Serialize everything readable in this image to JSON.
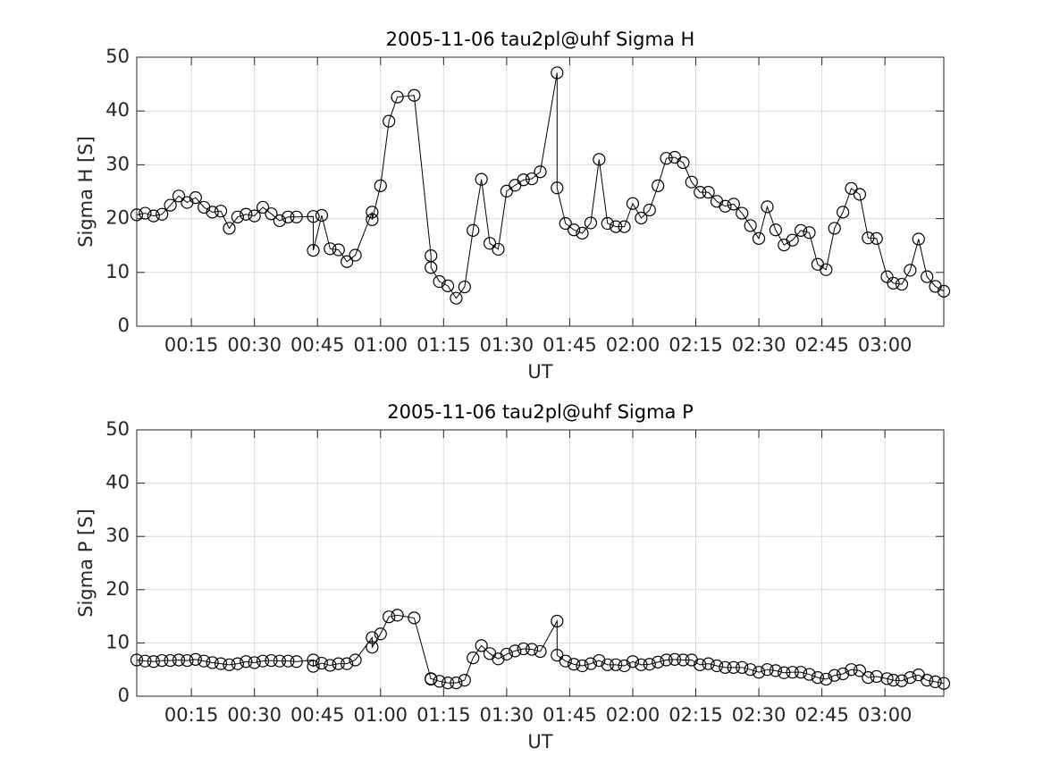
{
  "chart_data": [
    {
      "type": "line",
      "title": "2005-11-06  tau2pl@uhf Sigma H",
      "xlabel": "UT",
      "ylabel": "Sigma H [S]",
      "x": [
        2,
        4,
        6,
        8,
        10,
        12,
        14,
        16,
        18,
        20,
        22,
        24,
        26,
        28,
        30,
        32,
        34,
        36,
        38,
        40,
        44,
        44,
        46,
        48,
        50,
        52,
        54,
        58,
        58,
        60,
        62,
        64,
        68,
        72,
        72,
        74,
        76,
        78,
        80,
        82,
        84,
        86,
        88,
        90,
        92,
        94,
        96,
        98,
        102,
        102,
        104,
        106,
        108,
        110,
        112,
        114,
        116,
        118,
        120,
        122,
        124,
        126,
        128,
        130,
        132,
        134,
        136,
        138,
        140,
        142,
        144,
        146,
        148,
        150,
        152,
        154,
        156,
        158,
        160,
        162,
        164,
        166,
        168,
        170,
        172,
        174,
        176,
        178,
        180.5,
        182,
        184,
        186,
        188,
        190,
        192,
        194
      ],
      "values": [
        20.7,
        21,
        20.5,
        20.8,
        22.5,
        24.2,
        23,
        23.9,
        22.1,
        21.2,
        21.4,
        18.2,
        20.3,
        20.8,
        20.5,
        22.1,
        20.9,
        19.6,
        20.3,
        20.3,
        20.4,
        14.1,
        20.6,
        14.4,
        14.2,
        12,
        13.2,
        21.2,
        19.8,
        26.1,
        38.1,
        42.6,
        42.9,
        13.1,
        10.9,
        8.3,
        7.5,
        5.2,
        7.3,
        17.8,
        27.3,
        15.4,
        14.3,
        25.1,
        26.2,
        27.2,
        27.4,
        28.7,
        47.1,
        25.7,
        19.1,
        17.9,
        17.3,
        19.2,
        31,
        19.1,
        18.5,
        18.5,
        22.8,
        20.1,
        21.6,
        26.1,
        31.2,
        31.4,
        30.4,
        26.8,
        24.9,
        24.9,
        23.2,
        22.3,
        22.7,
        21,
        18.7,
        16.3,
        22.2,
        17.9,
        15.1,
        16,
        17.8,
        17.4,
        11.5,
        10.5,
        18.2,
        21.2,
        25.6,
        24.5,
        16.4,
        16.3,
        9.2,
        8,
        7.8,
        10.4,
        16.2,
        9.2,
        7.4,
        6.5
      ],
      "color": "#000000",
      "xlim": [
        2,
        194
      ],
      "xticks": [
        {
          "value": 15,
          "label": "00:15"
        },
        {
          "value": 30,
          "label": "00:30"
        },
        {
          "value": 45,
          "label": "00:45"
        },
        {
          "value": 60,
          "label": "01:00"
        },
        {
          "value": 75,
          "label": "01:15"
        },
        {
          "value": 90,
          "label": "01:30"
        },
        {
          "value": 105,
          "label": "01:45"
        },
        {
          "value": 120,
          "label": "02:00"
        },
        {
          "value": 135,
          "label": "02:15"
        },
        {
          "value": 150,
          "label": "02:30"
        },
        {
          "value": 165,
          "label": "02:45"
        },
        {
          "value": 180,
          "label": "03:00"
        }
      ],
      "ylim": [
        0,
        50
      ],
      "yticks": [
        0,
        10,
        20,
        30,
        40,
        50
      ],
      "grid": true
    },
    {
      "type": "line",
      "title": "2005-11-06  tau2pl@uhf Sigma P",
      "xlabel": "UT",
      "ylabel": "Sigma P [S]",
      "x": [
        2,
        4,
        6,
        8,
        10,
        12,
        14,
        16,
        18,
        20,
        22,
        24,
        26,
        28,
        30,
        32,
        34,
        36,
        38,
        40,
        44,
        44,
        46,
        48,
        50,
        52,
        54,
        58,
        58,
        60,
        62,
        64,
        68,
        72,
        72,
        74,
        76,
        78,
        80,
        82,
        84,
        86,
        88,
        90,
        92,
        94,
        96,
        98,
        102,
        102,
        104,
        106,
        108,
        110,
        112,
        114,
        116,
        118,
        120,
        122,
        124,
        126,
        128,
        130,
        132,
        134,
        136,
        138,
        140,
        142,
        144,
        146,
        148,
        150,
        152,
        154,
        156,
        158,
        160,
        162,
        164,
        166,
        168,
        170,
        172,
        174,
        176,
        178,
        180.5,
        182,
        184,
        186,
        188,
        190,
        192,
        194
      ],
      "values": [
        6.8,
        6.6,
        6.5,
        6.7,
        6.7,
        6.8,
        6.7,
        6.9,
        6.6,
        6.3,
        6.1,
        5.9,
        6.1,
        6.5,
        6.3,
        6.6,
        6.7,
        6.6,
        6.6,
        6.5,
        6.8,
        5.6,
        6.2,
        5.8,
        6.1,
        6.1,
        6.8,
        11,
        9.2,
        11.7,
        14.9,
        15.2,
        14.7,
        3.2,
        3.3,
        2.8,
        2.5,
        2.5,
        3,
        7.2,
        9.5,
        8,
        7,
        7.9,
        8.5,
        8.9,
        8.8,
        8.4,
        14.1,
        7.7,
        6.6,
        6,
        5.7,
        6.1,
        6.7,
        5.9,
        5.9,
        5.7,
        6.5,
        5.9,
        6,
        6.4,
        6.8,
        6.9,
        6.8,
        6.8,
        5.9,
        6.1,
        5.7,
        5.4,
        5.4,
        5.4,
        5,
        4.5,
        5,
        4.8,
        4.4,
        4.5,
        4.5,
        4.1,
        3.5,
        3.2,
        3.9,
        4.2,
        5,
        4.8,
        3.5,
        3.7,
        3.3,
        3,
        2.9,
        3.5,
        4,
        3,
        2.7,
        2.4
      ],
      "color": "#000000",
      "xlim": [
        2,
        194
      ],
      "xticks": [
        {
          "value": 15,
          "label": "00:15"
        },
        {
          "value": 30,
          "label": "00:30"
        },
        {
          "value": 45,
          "label": "00:45"
        },
        {
          "value": 60,
          "label": "01:00"
        },
        {
          "value": 75,
          "label": "01:15"
        },
        {
          "value": 90,
          "label": "01:30"
        },
        {
          "value": 105,
          "label": "01:45"
        },
        {
          "value": 120,
          "label": "02:00"
        },
        {
          "value": 135,
          "label": "02:15"
        },
        {
          "value": 150,
          "label": "02:30"
        },
        {
          "value": 165,
          "label": "02:45"
        },
        {
          "value": 180,
          "label": "03:00"
        }
      ],
      "ylim": [
        0,
        50
      ],
      "yticks": [
        0,
        10,
        20,
        30,
        40,
        50
      ],
      "grid": true
    }
  ]
}
